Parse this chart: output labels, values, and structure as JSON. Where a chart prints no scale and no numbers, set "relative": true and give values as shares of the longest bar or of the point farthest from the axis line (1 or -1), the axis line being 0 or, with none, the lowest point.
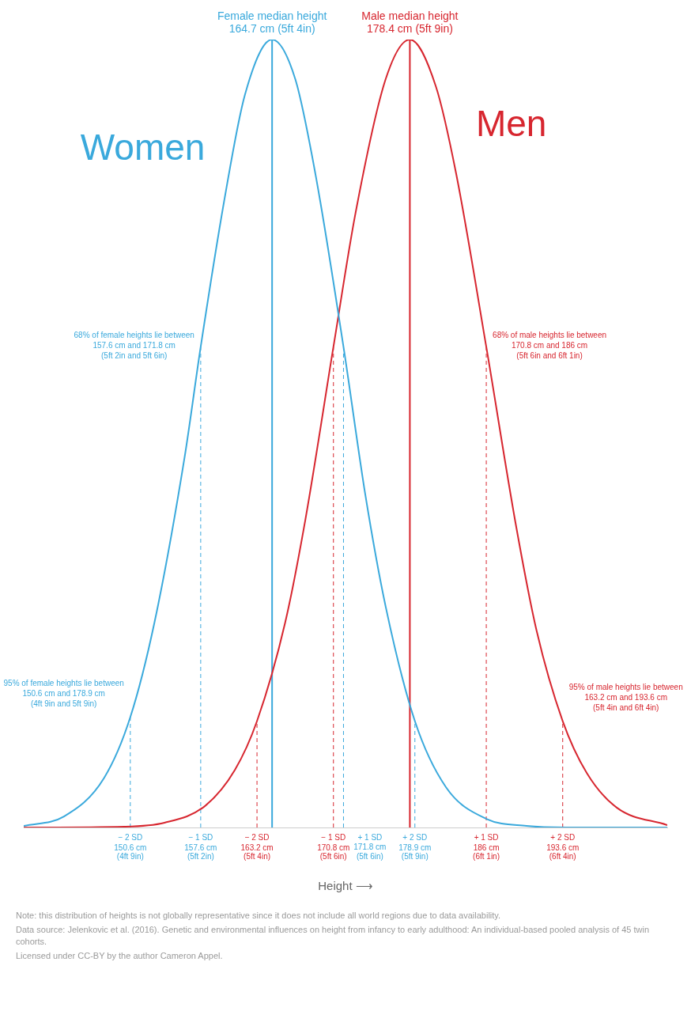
{
  "chart_data": {
    "type": "line",
    "relative": true,
    "xlim": [
      140,
      204
    ],
    "xlabel": "Height ⟶",
    "tick_labels": "x",
    "marker": "none",
    "line_style": "solid",
    "xticks": [
      {
        "value": 150.6,
        "label": "150.6 cm"
      },
      {
        "value": 157.6,
        "label": "157.6 cm"
      },
      {
        "value": 163.2,
        "label": "163.2 cm"
      },
      {
        "value": 170.8,
        "label": "170.8 cm"
      },
      {
        "value": 178.9,
        "label": "178.9 cm"
      },
      {
        "value": 186,
        "label": "186 cm"
      },
      {
        "value": 193.6,
        "label": "193.6 cm"
      }
    ],
    "series": [
      {
        "name": "Women",
        "color": "#3aa9dc",
        "x": [
          140,
          144,
          148,
          150.6,
          153,
          156,
          157.6,
          160,
          162,
          164.7,
          167,
          169,
          171.8,
          174,
          176,
          178.9,
          182,
          186,
          190,
          194,
          204
        ],
        "values": [
          0.002,
          0.014,
          0.063,
          0.14,
          0.26,
          0.47,
          0.61,
          0.8,
          0.93,
          1,
          0.95,
          0.83,
          0.61,
          0.42,
          0.28,
          0.135,
          0.051,
          0.011,
          0.002,
          0,
          0
        ]
      },
      {
        "name": "Men",
        "color": "#d7262f",
        "x": [
          140,
          150,
          154,
          158,
          161,
          163.2,
          166,
          168,
          170.8,
          173,
          176,
          178.4,
          181,
          183,
          186,
          189,
          191,
          193.6,
          196,
          199,
          204
        ],
        "values": [
          0,
          0.001,
          0.006,
          0.027,
          0.073,
          0.135,
          0.26,
          0.39,
          0.61,
          0.78,
          0.95,
          1,
          0.94,
          0.83,
          0.61,
          0.38,
          0.25,
          0.135,
          0.069,
          0.025,
          0.003
        ]
      }
    ],
    "ref_lines": [
      {
        "axis": "x",
        "value": 164.7,
        "label": "Female median height\n164.7 cm (5ft 4in)",
        "color": "#3aa9dc",
        "line_style": "solid"
      },
      {
        "axis": "x",
        "value": 178.4,
        "label": "Male median height\n178.4 cm (5ft 9in)",
        "color": "#d7262f",
        "line_style": "solid"
      },
      {
        "axis": "x",
        "value": 150.6,
        "label": "− 2 SD\n(4ft 9in)",
        "color": "#3aa9dc",
        "line_style": "dashed"
      },
      {
        "axis": "x",
        "value": 157.6,
        "label": "− 1 SD\n(5ft 2in)",
        "color": "#3aa9dc",
        "line_style": "dashed"
      },
      {
        "axis": "x",
        "value": 163.2,
        "label": "− 2 SD\n(5ft 4in)",
        "color": "#d7262f",
        "line_style": "dashed"
      },
      {
        "axis": "x",
        "value": 170.8,
        "label": "− 1 SD\n(5ft 6in)",
        "color": "#d7262f",
        "line_style": "dashed"
      },
      {
        "axis": "x",
        "value": 171.8,
        "label": "+ 1 SD\n171.8 cm\n(5ft 6in)",
        "color": "#3aa9dc",
        "line_style": "dashed"
      },
      {
        "axis": "x",
        "value": 178.9,
        "label": "+ 2 SD\n(5ft 9in)",
        "color": "#3aa9dc",
        "line_style": "dashed"
      },
      {
        "axis": "x",
        "value": 186,
        "label": "+ 1 SD\n(6ft 1in)",
        "color": "#d7262f",
        "line_style": "dashed"
      },
      {
        "axis": "x",
        "value": 193.6,
        "label": "+ 2 SD\n(6ft 4in)",
        "color": "#d7262f",
        "line_style": "dashed"
      }
    ],
    "annotations": [
      {
        "text": "68% of female heights lie between\n157.6 cm and 171.8 cm\n(5ft 2in and 5ft 6in)",
        "x": 157.6,
        "y": 0.61
      },
      {
        "text": "95% of female heights lie between\n150.6 cm and 178.9 cm\n(4ft 9in and 5ft 9in)",
        "x": 150.6,
        "y": 0.14
      },
      {
        "text": "68% of male heights lie between\n170.8 cm and 186 cm\n(5ft 6in and 6ft 1in)",
        "x": 186,
        "y": 0.61
      },
      {
        "text": "95% of male heights lie between\n163.2 cm and 193.6 cm\n(5ft 4in and 6ft 4in)",
        "x": 193.6,
        "y": 0.135
      },
      "Note: this distribution of heights is not globally representative since it does not include all world regions due to data availability.",
      "Data source: Jelenkovic et al. (2016). Genetic and environmental influences on height from infancy to early adulthood: An individual-based pooled analysis of 45 twin cohorts.",
      "Licensed under CC-BY by the author Cameron Appel."
    ]
  }
}
